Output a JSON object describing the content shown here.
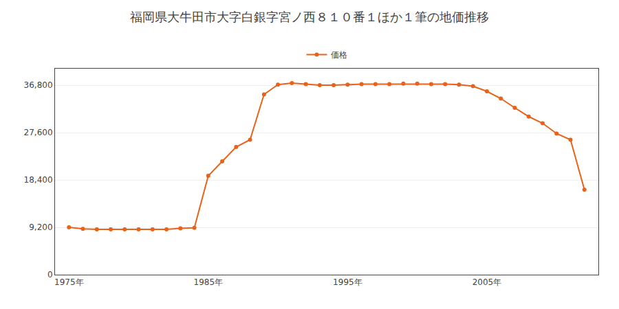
{
  "chart_data": {
    "type": "line",
    "title": "福岡県大牛田市大字白銀字宮ノ西８１０番１ほか１筆の地価推移",
    "x": [
      1975,
      1976,
      1977,
      1978,
      1979,
      1980,
      1981,
      1982,
      1983,
      1984,
      1985,
      1986,
      1987,
      1988,
      1989,
      1990,
      1991,
      1992,
      1993,
      1994,
      1995,
      1996,
      1997,
      1998,
      1999,
      2000,
      2001,
      2002,
      2003,
      2004,
      2005,
      2006,
      2007,
      2008,
      2009,
      2010,
      2011,
      2012
    ],
    "series": [
      {
        "name": "価格",
        "color": "#e8621a",
        "marker": "circle",
        "values": [
          9200,
          8900,
          8800,
          8800,
          8800,
          8800,
          8800,
          8800,
          9000,
          9100,
          19200,
          22000,
          24800,
          26200,
          35000,
          36900,
          37200,
          37000,
          36800,
          36800,
          36900,
          37000,
          37000,
          37000,
          37100,
          37100,
          37000,
          37000,
          36900,
          36600,
          35600,
          34200,
          32400,
          30700,
          29400,
          27400,
          26200,
          16500
        ]
      }
    ],
    "xlim": [
      1974,
      2013
    ],
    "xticks": [
      {
        "value": 1975,
        "label": "1975年"
      },
      {
        "value": 1985,
        "label": "1985年"
      },
      {
        "value": 1995,
        "label": "1995年"
      },
      {
        "value": 2005,
        "label": "2005年"
      }
    ],
    "ylim": [
      0,
      40000
    ],
    "yticks": [
      0,
      {
        "value": 9200,
        "label": "9,200"
      },
      {
        "value": 18400,
        "label": "18,400"
      },
      {
        "value": 27600,
        "label": "27,600"
      },
      {
        "value": 36800,
        "label": "36,800"
      }
    ],
    "grid": "y",
    "legend": "top"
  }
}
